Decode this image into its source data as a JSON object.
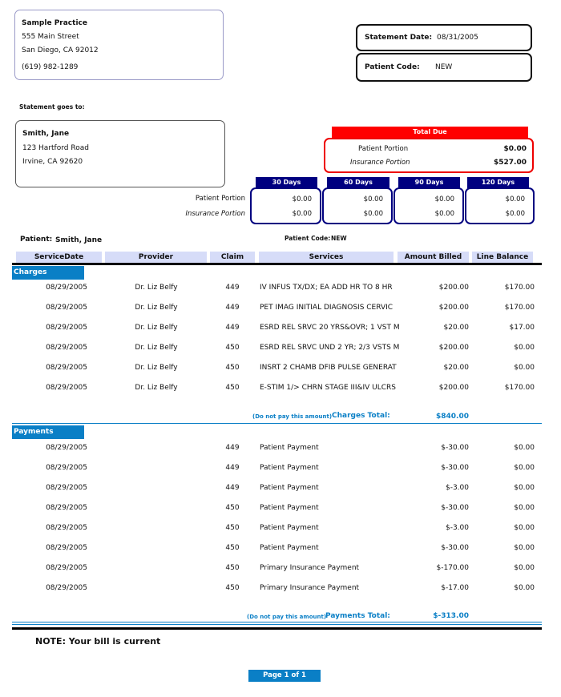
{
  "practice": {
    "name": "Sample Practice",
    "street": "555 Main Street",
    "city": "San Diego, CA 92012",
    "phone": "(619) 982-1289"
  },
  "statement": {
    "date_label": "Statement Date:",
    "date": "08/31/2005",
    "code_label": "Patient Code:",
    "code": "NEW"
  },
  "goes_to_label": "Statement goes to:",
  "recipient": {
    "name": "Smith, Jane",
    "street": "123 Hartford Road",
    "city": "Irvine, CA 92620"
  },
  "total_due": {
    "title": "Total Due",
    "patient_label": "Patient Portion",
    "patient": "$0.00",
    "insurance_label": "Insurance Portion",
    "insurance": "$527.00"
  },
  "aging": {
    "patient_label": "Patient Portion",
    "insurance_label": "Insurance Portion",
    "buckets": [
      {
        "label": "30 Days",
        "patient": "$0.00",
        "insurance": "$0.00"
      },
      {
        "label": "60 Days",
        "patient": "$0.00",
        "insurance": "$0.00"
      },
      {
        "label": "90 Days",
        "patient": "$0.00",
        "insurance": "$0.00"
      },
      {
        "label": "120 Days",
        "patient": "$0.00",
        "insurance": "$0.00"
      }
    ]
  },
  "patient_line": {
    "label": "Patient:",
    "name": "Smith, Jane",
    "code_label": "Patient Code:",
    "code": "NEW"
  },
  "columns": [
    "ServiceDate",
    "Provider",
    "Claim",
    "Services",
    "Amount Billed",
    "Line Balance"
  ],
  "charges": {
    "label": "Charges",
    "rows": [
      [
        "08/29/2005",
        "Dr. Liz Belfy",
        "449",
        "IV INFUS TX/DX; EA ADD HR TO 8 HR",
        "$200.00",
        "$170.00"
      ],
      [
        "08/29/2005",
        "Dr. Liz Belfy",
        "449",
        "PET IMAG INITIAL DIAGNOSIS CERVIC",
        "$200.00",
        "$170.00"
      ],
      [
        "08/29/2005",
        "Dr. Liz Belfy",
        "449",
        "ESRD REL SRVC 20 YRS&OVR; 1 VST M",
        "$20.00",
        "$17.00"
      ],
      [
        "08/29/2005",
        "Dr. Liz Belfy",
        "450",
        "ESRD REL SRVC UND 2 YR; 2/3 VSTS M",
        "$200.00",
        "$0.00"
      ],
      [
        "08/29/2005",
        "Dr. Liz Belfy",
        "450",
        "INSRT 2 CHAMB DFIB PULSE GENERAT",
        "$20.00",
        "$0.00"
      ],
      [
        "08/29/2005",
        "Dr. Liz Belfy",
        "450",
        "E-STIM 1/> CHRN STAGE III&IV ULCRS",
        "$200.00",
        "$170.00"
      ]
    ],
    "note": "(Do not pay this amount)",
    "total_label": "Charges Total:",
    "total": "$840.00"
  },
  "payments": {
    "label": "Payments",
    "rows": [
      [
        "08/29/2005",
        "",
        "449",
        "Patient Payment",
        "$-30.00",
        "$0.00"
      ],
      [
        "08/29/2005",
        "",
        "449",
        "Patient Payment",
        "$-30.00",
        "$0.00"
      ],
      [
        "08/29/2005",
        "",
        "449",
        "Patient Payment",
        "$-3.00",
        "$0.00"
      ],
      [
        "08/29/2005",
        "",
        "450",
        "Patient Payment",
        "$-30.00",
        "$0.00"
      ],
      [
        "08/29/2005",
        "",
        "450",
        "Patient Payment",
        "$-3.00",
        "$0.00"
      ],
      [
        "08/29/2005",
        "",
        "450",
        "Patient Payment",
        "$-30.00",
        "$0.00"
      ],
      [
        "08/29/2005",
        "",
        "450",
        "Primary Insurance Payment",
        "$-170.00",
        "$0.00"
      ],
      [
        "08/29/2005",
        "",
        "450",
        "Primary Insurance Payment",
        "$-17.00",
        "$0.00"
      ]
    ],
    "note": "(Do not pay this amount)",
    "total_label": "Payments Total:",
    "total": "$-313.00"
  },
  "bill_note": "NOTE: Your bill is current",
  "page": "Page 1 of 1"
}
